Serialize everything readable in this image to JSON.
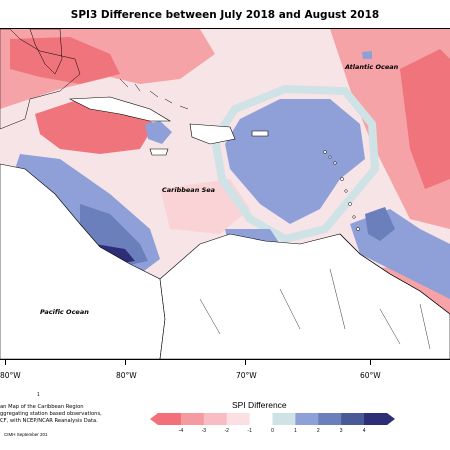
{
  "title": "SPI3 Difference between July 2018 and August 2018",
  "ocean_labels": {
    "atlantic": "Atlantic Ocean",
    "caribbean": "Caribbean Sea",
    "pacific": "Pacific Ocean"
  },
  "longitude_labels": [
    "80°W",
    "80°W",
    "70°W",
    "60°W"
  ],
  "footnote_lines": [
    "an Map of the Caribbean Region",
    "ggregating station based observations,",
    "CF, with NCEP/NCAR Reanalysis Data."
  ],
  "credit": "CIMH September 201",
  "small_mark": "1",
  "legend": {
    "title": "SPI Difference",
    "tick_labels": [
      "-4",
      "-3",
      "-2",
      "-1",
      "0",
      "1",
      "2",
      "3",
      "4"
    ],
    "colors": [
      "#f36f7a",
      "#f69aa2",
      "#f8bcc2",
      "#fbdfe2",
      "#ffffff",
      "#cfe2e6",
      "#8fa0d9",
      "#6a7fbb",
      "#4a5a96",
      "#2e2e78"
    ]
  },
  "colors": {
    "dry_strong": "#f0747c",
    "dry_moderate": "#f6a3a8",
    "dry_light": "#fad3d6",
    "neutral": "#f6edee",
    "wet_light": "#cfe2e6",
    "wet_moderate": "#8fa0d9",
    "wet_strong": "#6a7fbb",
    "wet_extreme": "#2e2e78",
    "land": "#ffffff"
  }
}
